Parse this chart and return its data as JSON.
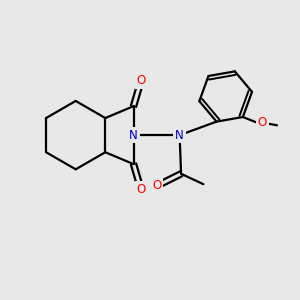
{
  "bg_color": "#e8e8e8",
  "bond_color": "#000000",
  "N_color": "#0000cc",
  "O_color": "#ff0000",
  "line_width": 1.6,
  "font_size_atom": 8.5,
  "fig_size": [
    3.0,
    3.0
  ],
  "dpi": 100,
  "xlim": [
    0,
    10
  ],
  "ylim": [
    0,
    10
  ]
}
